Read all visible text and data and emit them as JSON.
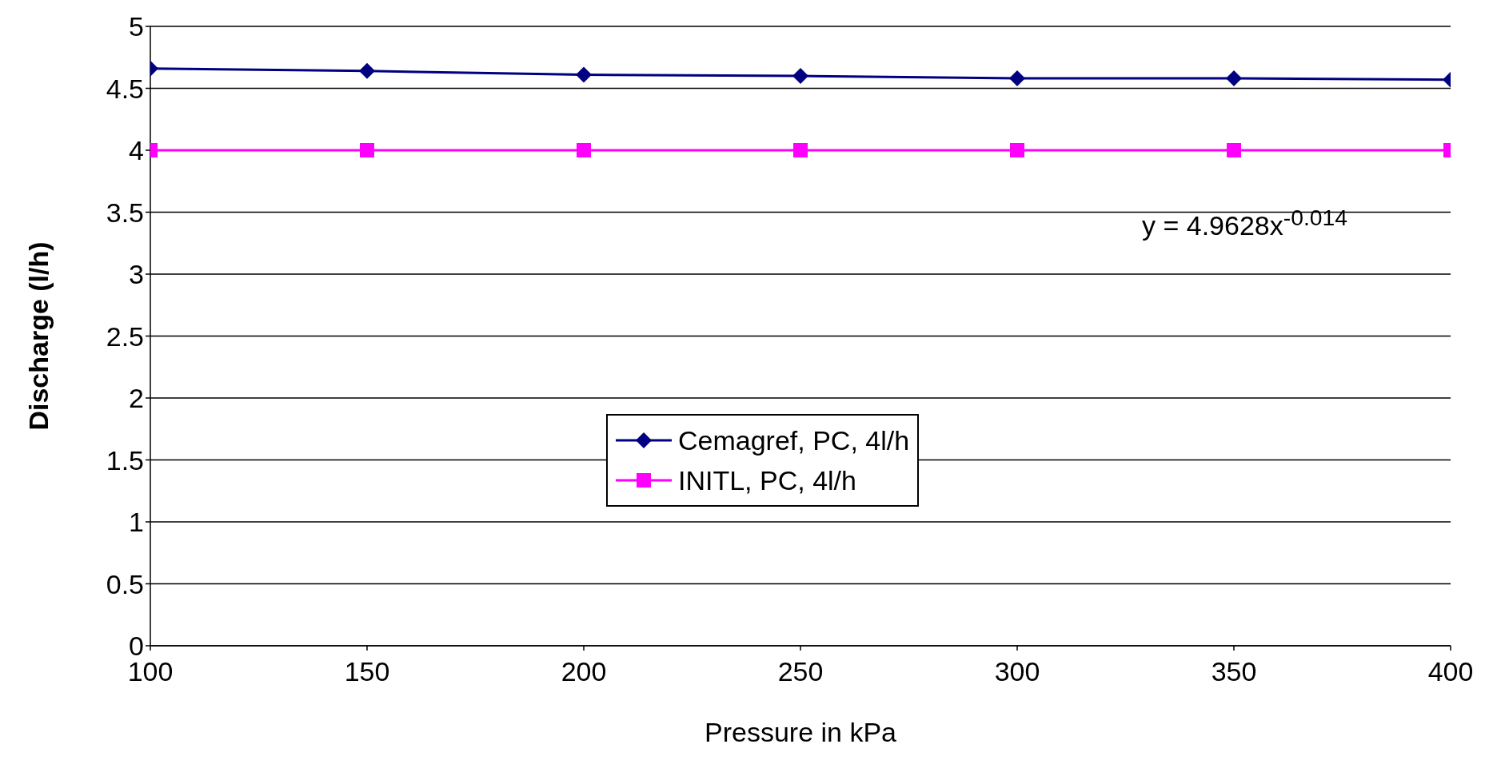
{
  "chart_data": {
    "type": "line",
    "xlabel": "Pressure in kPa",
    "ylabel": "Discharge (l/h)",
    "xlim": [
      100,
      400
    ],
    "xticks": [
      100,
      150,
      200,
      250,
      300,
      350,
      400
    ],
    "ylim": [
      0,
      5
    ],
    "yticks": [
      0,
      0.5,
      1,
      1.5,
      2,
      2.5,
      3,
      3.5,
      4,
      4.5,
      5
    ],
    "grid": "y",
    "legend": "bottom",
    "line_style": "solid",
    "annotations": [
      "y = 4.9628x$^{-0.014}$"
    ],
    "series": [
      {
        "name": "Cemagref, PC, 4l/h",
        "color": "#000080",
        "marker": "diamond",
        "x": [
          100,
          150,
          200,
          250,
          300,
          350,
          400
        ],
        "values": [
          4.66,
          4.64,
          4.61,
          4.6,
          4.58,
          4.58,
          4.57
        ]
      },
      {
        "name": "INITL, PC, 4l/h",
        "color": "#ff00ff",
        "marker": "square",
        "x": [
          100,
          150,
          200,
          250,
          300,
          350,
          400
        ],
        "values": [
          4,
          4,
          4,
          4,
          4,
          4,
          4
        ]
      }
    ]
  }
}
